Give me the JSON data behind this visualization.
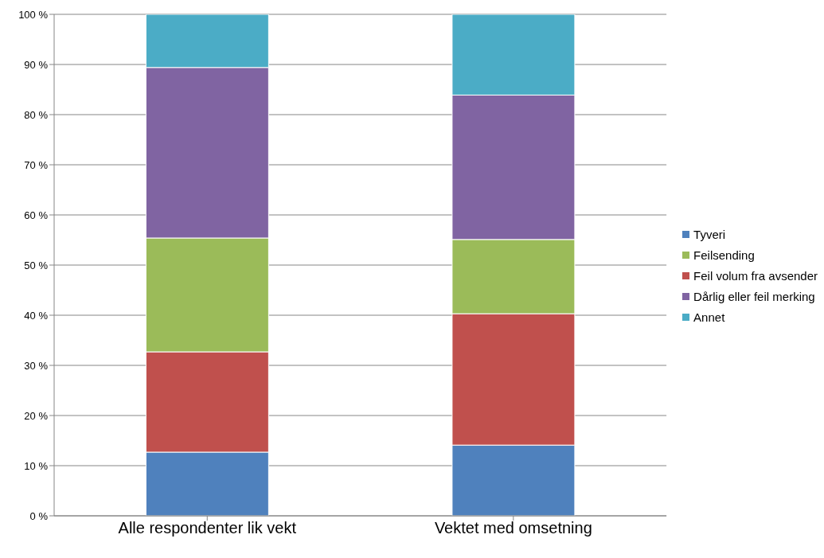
{
  "chart_data": {
    "type": "bar",
    "stacked": true,
    "categories": [
      "Alle respondenter lik vekt",
      "Vektet med omsetning"
    ],
    "series": [
      {
        "name": "Tyveri",
        "color": "#4f81bd",
        "values": [
          12.7,
          14.1
        ]
      },
      {
        "name": "Feil volum fra avsender",
        "color": "#c0504d",
        "values": [
          20.0,
          26.2
        ]
      },
      {
        "name": "Feilsending",
        "color": "#9bbb59",
        "values": [
          22.7,
          14.8
        ]
      },
      {
        "name": "Dårlig eller feil merking",
        "color": "#8064a2",
        "values": [
          34.0,
          28.8
        ]
      },
      {
        "name": "Annet",
        "color": "#4bacc6",
        "values": [
          10.6,
          16.1
        ]
      }
    ],
    "ylim": [
      0,
      100
    ],
    "yticks": [
      {
        "value": 0,
        "label": "0 %"
      },
      {
        "value": 10,
        "label": "10 %"
      },
      {
        "value": 20,
        "label": "20 %"
      },
      {
        "value": 30,
        "label": "30 %"
      },
      {
        "value": 40,
        "label": "40 %"
      },
      {
        "value": 50,
        "label": "50 %"
      },
      {
        "value": 60,
        "label": "60 %"
      },
      {
        "value": 70,
        "label": "70 %"
      },
      {
        "value": 80,
        "label": "80 %"
      },
      {
        "value": 90,
        "label": "90 %"
      },
      {
        "value": 100,
        "label": "100 %"
      }
    ],
    "grid": "y",
    "legend": "right"
  }
}
